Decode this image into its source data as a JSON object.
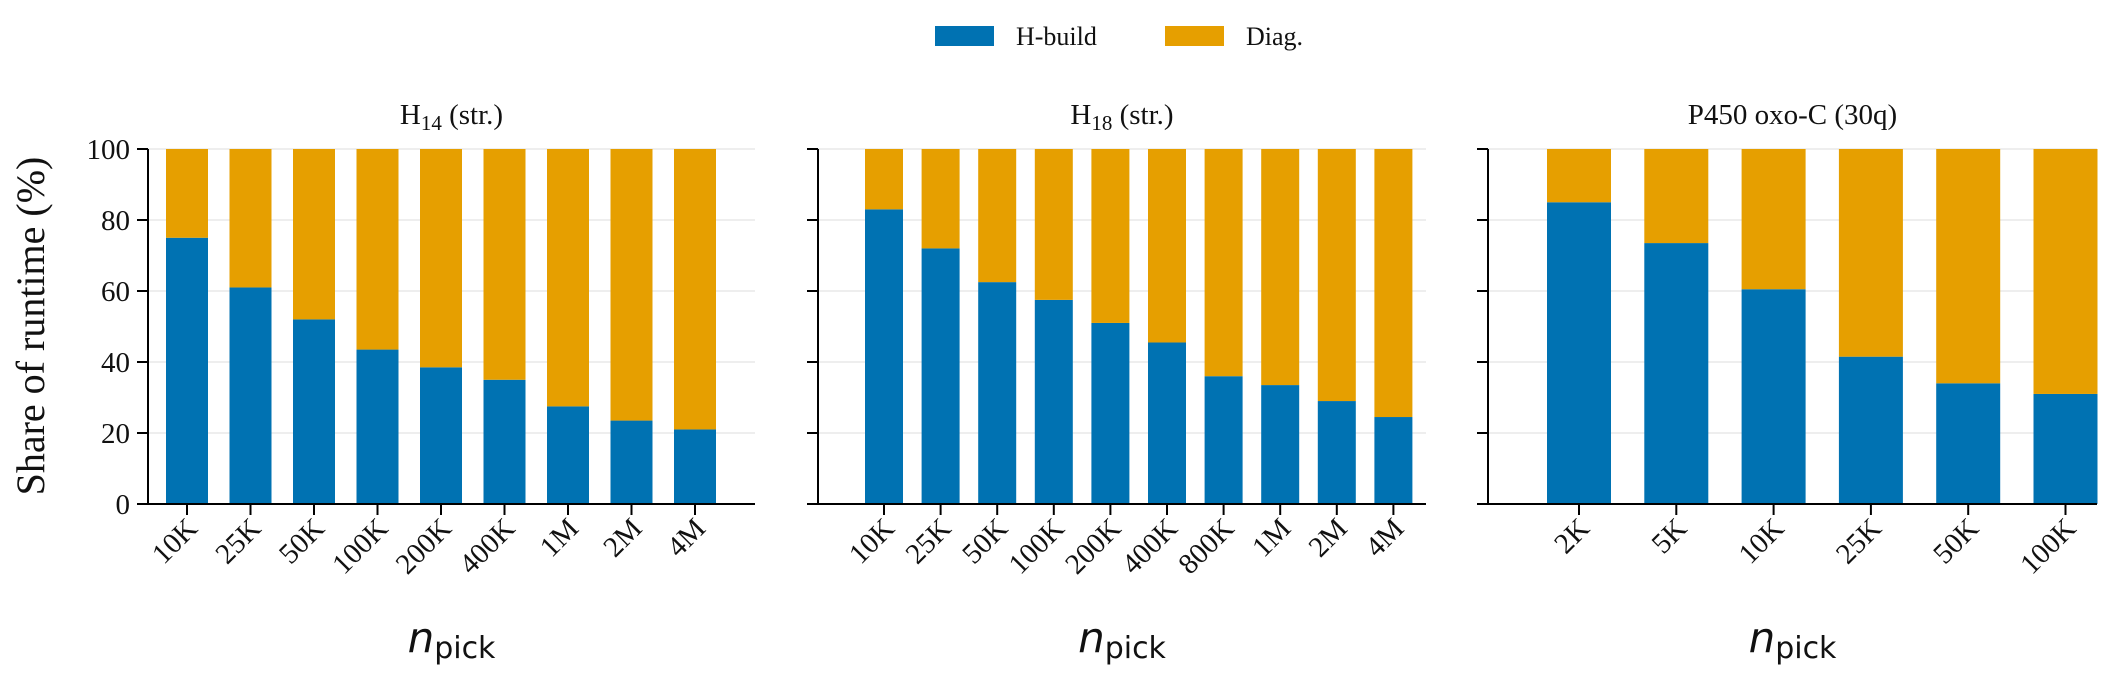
{
  "colors": {
    "h_build": "#0072B2",
    "diag": "#E69F00",
    "grid": "#dddddd",
    "axis": "#000000"
  },
  "legend": {
    "placement": "top-center",
    "items": [
      {
        "label": "H-build",
        "color": "#0072B2"
      },
      {
        "label": "Diag.",
        "color": "#E69F00"
      }
    ]
  },
  "ylabel": "Share of runtime (%)",
  "xlabel_main": "n",
  "xlabel_sub": "pick",
  "chart_data": [
    {
      "type": "bar",
      "stacked": true,
      "title_main": "H",
      "title_sub": "14",
      "title_rest": " (str.)",
      "categories": [
        "10K",
        "25K",
        "50K",
        "100K",
        "200K",
        "400K",
        "1M",
        "2M",
        "4M"
      ],
      "series": [
        {
          "name": "H-build",
          "values": [
            75,
            61,
            52,
            43.5,
            38.5,
            35,
            27.5,
            23.5,
            21
          ]
        },
        {
          "name": "Diag.",
          "values": [
            25,
            39,
            48,
            56.5,
            61.5,
            65,
            72.5,
            76.5,
            79
          ]
        }
      ],
      "ylim": [
        0,
        100
      ],
      "yticks": [
        0,
        20,
        40,
        60,
        80,
        100
      ],
      "grid": "y"
    },
    {
      "type": "bar",
      "stacked": true,
      "title_main": "H",
      "title_sub": "18",
      "title_rest": " (str.)",
      "categories": [
        "10K",
        "25K",
        "50K",
        "100K",
        "200K",
        "400K",
        "800K",
        "1M",
        "2M",
        "4M"
      ],
      "series": [
        {
          "name": "H-build",
          "values": [
            83,
            72,
            62.5,
            57.5,
            51,
            45.5,
            36,
            33.5,
            29,
            24.5
          ]
        },
        {
          "name": "Diag.",
          "values": [
            17,
            28,
            37.5,
            42.5,
            49,
            54.5,
            64,
            66.5,
            71,
            75.5
          ]
        }
      ],
      "ylim": [
        0,
        100
      ],
      "yticks": [
        0,
        20,
        40,
        60,
        80,
        100
      ],
      "grid": "y"
    },
    {
      "type": "bar",
      "stacked": true,
      "title_main": "P450 oxo-C (30q)",
      "title_sub": "",
      "title_rest": "",
      "categories": [
        "2K",
        "5K",
        "10K",
        "25K",
        "50K",
        "100K"
      ],
      "series": [
        {
          "name": "H-build",
          "values": [
            85,
            73.5,
            60.5,
            41.5,
            34,
            31
          ]
        },
        {
          "name": "Diag.",
          "values": [
            15,
            26.5,
            39.5,
            58.5,
            66,
            69
          ]
        }
      ],
      "ylim": [
        0,
        100
      ],
      "yticks": [
        0,
        20,
        40,
        60,
        80,
        100
      ],
      "grid": "y"
    }
  ]
}
